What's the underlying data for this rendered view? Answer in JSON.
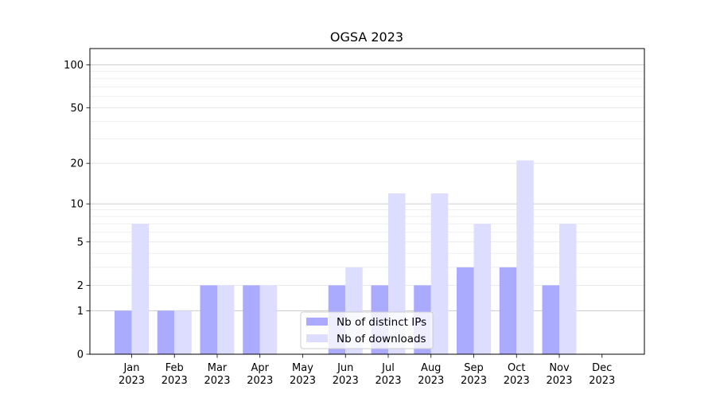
{
  "chart_data": {
    "type": "bar",
    "title": "OGSA 2023",
    "xlabel": "",
    "ylabel": "",
    "y_scale": "symlog",
    "ylim": [
      0,
      130
    ],
    "yticks": [
      0,
      1,
      2,
      5,
      10,
      20,
      50,
      100
    ],
    "ytick_labels": [
      "0",
      "1",
      "2",
      "5",
      "10",
      "20",
      "50",
      "100"
    ],
    "grid": true,
    "legend_position": "bottom-center",
    "categories": [
      {
        "month": "Jan",
        "year": "2023"
      },
      {
        "month": "Feb",
        "year": "2023"
      },
      {
        "month": "Mar",
        "year": "2023"
      },
      {
        "month": "Apr",
        "year": "2023"
      },
      {
        "month": "May",
        "year": "2023"
      },
      {
        "month": "Jun",
        "year": "2023"
      },
      {
        "month": "Jul",
        "year": "2023"
      },
      {
        "month": "Aug",
        "year": "2023"
      },
      {
        "month": "Sep",
        "year": "2023"
      },
      {
        "month": "Oct",
        "year": "2023"
      },
      {
        "month": "Nov",
        "year": "2023"
      },
      {
        "month": "Dec",
        "year": "2023"
      }
    ],
    "series": [
      {
        "name": "Nb of distinct IPs",
        "color": "#aaaaff",
        "values": [
          1,
          1,
          2,
          2,
          0,
          2,
          2,
          2,
          3,
          3,
          2,
          0
        ]
      },
      {
        "name": "Nb of downloads",
        "color": "#ddddff",
        "values": [
          7,
          1,
          2,
          2,
          0,
          3,
          12,
          12,
          7,
          21,
          7,
          0
        ]
      }
    ]
  }
}
